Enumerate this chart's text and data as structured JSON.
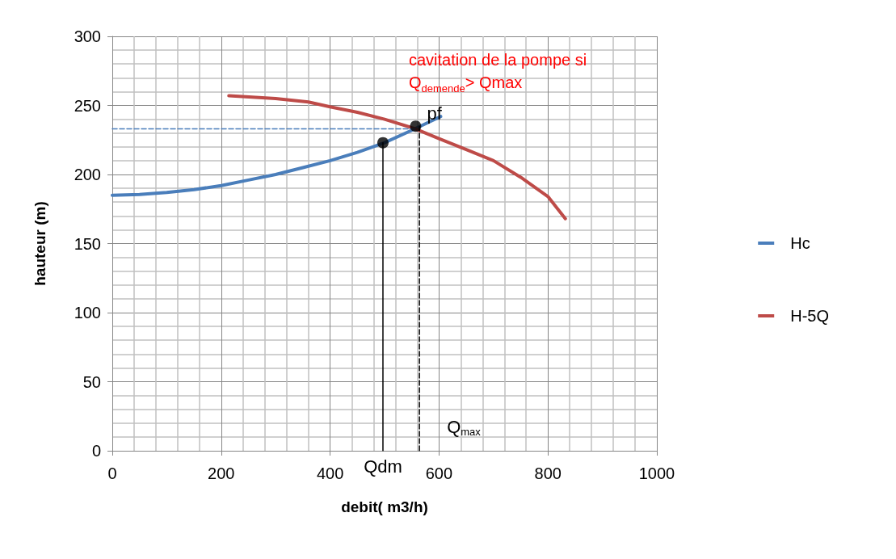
{
  "chart_data": {
    "type": "line",
    "xlabel": "debit( m3/h)",
    "ylabel": "hauteur (m)",
    "xlim": [
      0,
      1000
    ],
    "xticks": [
      0,
      200,
      400,
      600,
      800,
      1000
    ],
    "ylim": [
      0,
      300
    ],
    "yticks": [
      0,
      50,
      100,
      150,
      200,
      250,
      300
    ],
    "grid": true,
    "legend": "right",
    "marker": "none",
    "line_style": "solid",
    "series": [
      {
        "name": "Hc",
        "color": "#4a7ebb",
        "x": [
          0,
          50,
          100,
          150,
          200,
          250,
          300,
          350,
          400,
          450,
          500,
          550,
          603
        ],
        "values": [
          185,
          185.5,
          187,
          189,
          192,
          196,
          200,
          205,
          210,
          216,
          223,
          232,
          242
        ]
      },
      {
        "name": "H-5Q",
        "color": "#be4b48",
        "x": [
          214,
          300,
          360,
          400,
          450,
          500,
          557,
          600,
          650,
          700,
          750,
          800,
          832
        ],
        "values": [
          257,
          255,
          252.5,
          249,
          245,
          240,
          233,
          226,
          218,
          210,
          198,
          184,
          168
        ]
      },
      {
        "type": "line",
        "color": "#4a7ebb",
        "line_style": "dashed",
        "x": [
          0,
          557
        ],
        "values": [
          233,
          233
        ]
      },
      {
        "type": "line",
        "color": "#000000",
        "x": [
          497,
          497
        ],
        "values": [
          0,
          223
        ]
      },
      {
        "type": "line",
        "color": "#000000",
        "line_style": "dashed",
        "x": [
          564,
          564
        ],
        "values": [
          0,
          235
        ]
      },
      {
        "type": "scatter",
        "color": "#000000",
        "marker": "circle",
        "x": [
          497,
          557
        ],
        "values": [
          223,
          235
        ]
      }
    ],
    "annotations": [
      "cavitation de la pompe si Q$_{demende}$> Qmax",
      {
        "text": "pf",
        "x": 557,
        "y": 235
      },
      {
        "text": "Qdm",
        "x": 497,
        "y": 0
      },
      {
        "text": "Q$_{max}$",
        "x": 564,
        "y": 0
      }
    ]
  }
}
